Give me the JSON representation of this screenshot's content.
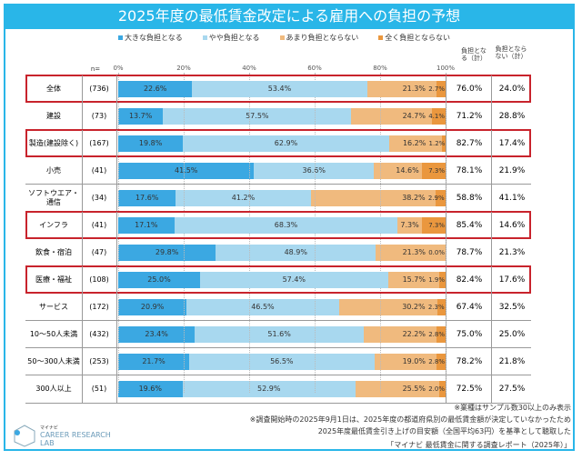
{
  "title": "2025年度の最低賃金改定による雇用への負担の予想",
  "chart_data": {
    "type": "bar",
    "orientation": "horizontal",
    "stacked": true,
    "legend": [
      "大きな負担となる",
      "やや負担となる",
      "あまり負担とならない",
      "全く負担とならない"
    ],
    "legend_position": "top",
    "colors": [
      "#3ba8e2",
      "#a8d8ef",
      "#f0ba7e",
      "#ea973e"
    ],
    "n_label": "n=",
    "xticks": [
      "0%",
      "20%",
      "40%",
      "60%",
      "80%",
      "100%"
    ],
    "xlim": [
      0,
      100
    ],
    "total_headers": [
      "負担となる（計）",
      "負担とならない（計）"
    ],
    "rows": [
      {
        "label": "全体",
        "n": "(736)",
        "values": [
          22.6,
          53.4,
          21.3,
          2.7
        ],
        "t1": "76.0%",
        "t2": "24.0%",
        "highlight": true
      },
      {
        "label": "建設",
        "n": "(73)",
        "values": [
          13.7,
          57.5,
          24.7,
          4.1
        ],
        "t1": "71.2%",
        "t2": "28.8%",
        "highlight": false
      },
      {
        "label": "製造(建設除く)",
        "n": "(167)",
        "values": [
          19.8,
          62.9,
          16.2,
          1.2
        ],
        "t1": "82.7%",
        "t2": "17.4%",
        "highlight": true
      },
      {
        "label": "小売",
        "n": "(41)",
        "values": [
          41.5,
          36.6,
          14.6,
          7.3
        ],
        "t1": "78.1%",
        "t2": "21.9%",
        "highlight": false
      },
      {
        "label": "ソフトウエア・通信",
        "n": "(34)",
        "values": [
          17.6,
          41.2,
          38.2,
          2.9
        ],
        "t1": "58.8%",
        "t2": "41.1%",
        "highlight": false
      },
      {
        "label": "インフラ",
        "n": "(41)",
        "values": [
          17.1,
          68.3,
          7.3,
          7.3
        ],
        "t1": "85.4%",
        "t2": "14.6%",
        "highlight": true
      },
      {
        "label": "飲食・宿泊",
        "n": "(47)",
        "values": [
          29.8,
          48.9,
          21.3,
          0.0
        ],
        "t1": "78.7%",
        "t2": "21.3%",
        "highlight": false
      },
      {
        "label": "医療・福祉",
        "n": "(108)",
        "values": [
          25.0,
          57.4,
          15.7,
          1.9
        ],
        "t1": "82.4%",
        "t2": "17.6%",
        "highlight": true
      },
      {
        "label": "サービス",
        "n": "(172)",
        "values": [
          20.9,
          46.5,
          30.2,
          2.3
        ],
        "t1": "67.4%",
        "t2": "32.5%",
        "highlight": false
      },
      {
        "label": "10～50人未満",
        "n": "(432)",
        "values": [
          23.4,
          51.6,
          22.2,
          2.8
        ],
        "t1": "75.0%",
        "t2": "25.0%",
        "highlight": false
      },
      {
        "label": "50～300人未満",
        "n": "(253)",
        "values": [
          21.7,
          56.5,
          19.0,
          2.8
        ],
        "t1": "78.2%",
        "t2": "21.8%",
        "highlight": false
      },
      {
        "label": "300人以上",
        "n": "(51)",
        "values": [
          19.6,
          52.9,
          25.5,
          2.0
        ],
        "t1": "72.5%",
        "t2": "27.5%",
        "highlight": false
      }
    ]
  },
  "notes": [
    "※業種はサンプル数30以上のみ表示",
    "※調査開始時の2025年9月1日は、2025年度の都道府県別の最低賃金額が決定していなかったため",
    "2025年度最低賃金引き上げの目安額（全国平均63円）を基準として聴取した",
    "「マイナビ 最低賃金に関する調査レポート（2025年）」"
  ],
  "logo": {
    "line1": "マイナビ",
    "line2": "CAREER RESEARCH",
    "line3": "LAB"
  }
}
